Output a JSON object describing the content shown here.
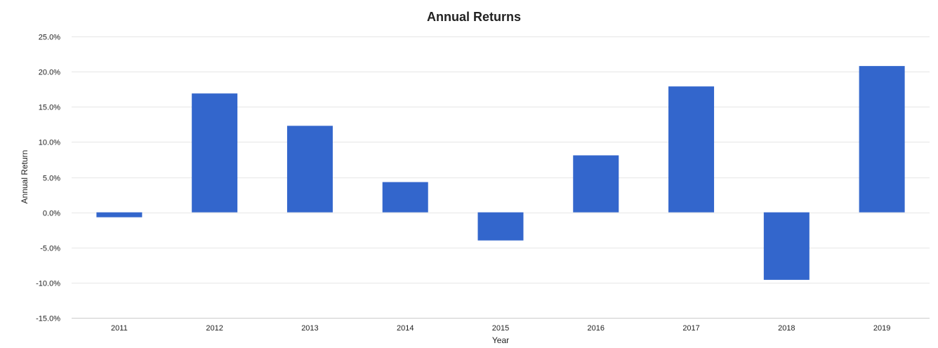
{
  "chart_data": {
    "type": "bar",
    "title": "Annual Returns",
    "xlabel": "Year",
    "ylabel": "Annual Return",
    "categories": [
      "2011",
      "2012",
      "2013",
      "2014",
      "2015",
      "2016",
      "2017",
      "2018",
      "2019"
    ],
    "values": [
      -0.7,
      16.9,
      12.3,
      4.3,
      -4.0,
      8.1,
      17.9,
      -9.6,
      20.8
    ],
    "ylim": [
      -15,
      25
    ],
    "yticks": [
      25,
      20,
      15,
      10,
      5,
      0,
      -5,
      -10,
      -15
    ],
    "ytick_labels": [
      "25.0%",
      "20.0%",
      "15.0%",
      "10.0%",
      "5.0%",
      "0.0%",
      "-5.0%",
      "-10.0%",
      "-15.0%"
    ],
    "bar_color": "#3366cc",
    "grid": true,
    "legend": "none"
  }
}
